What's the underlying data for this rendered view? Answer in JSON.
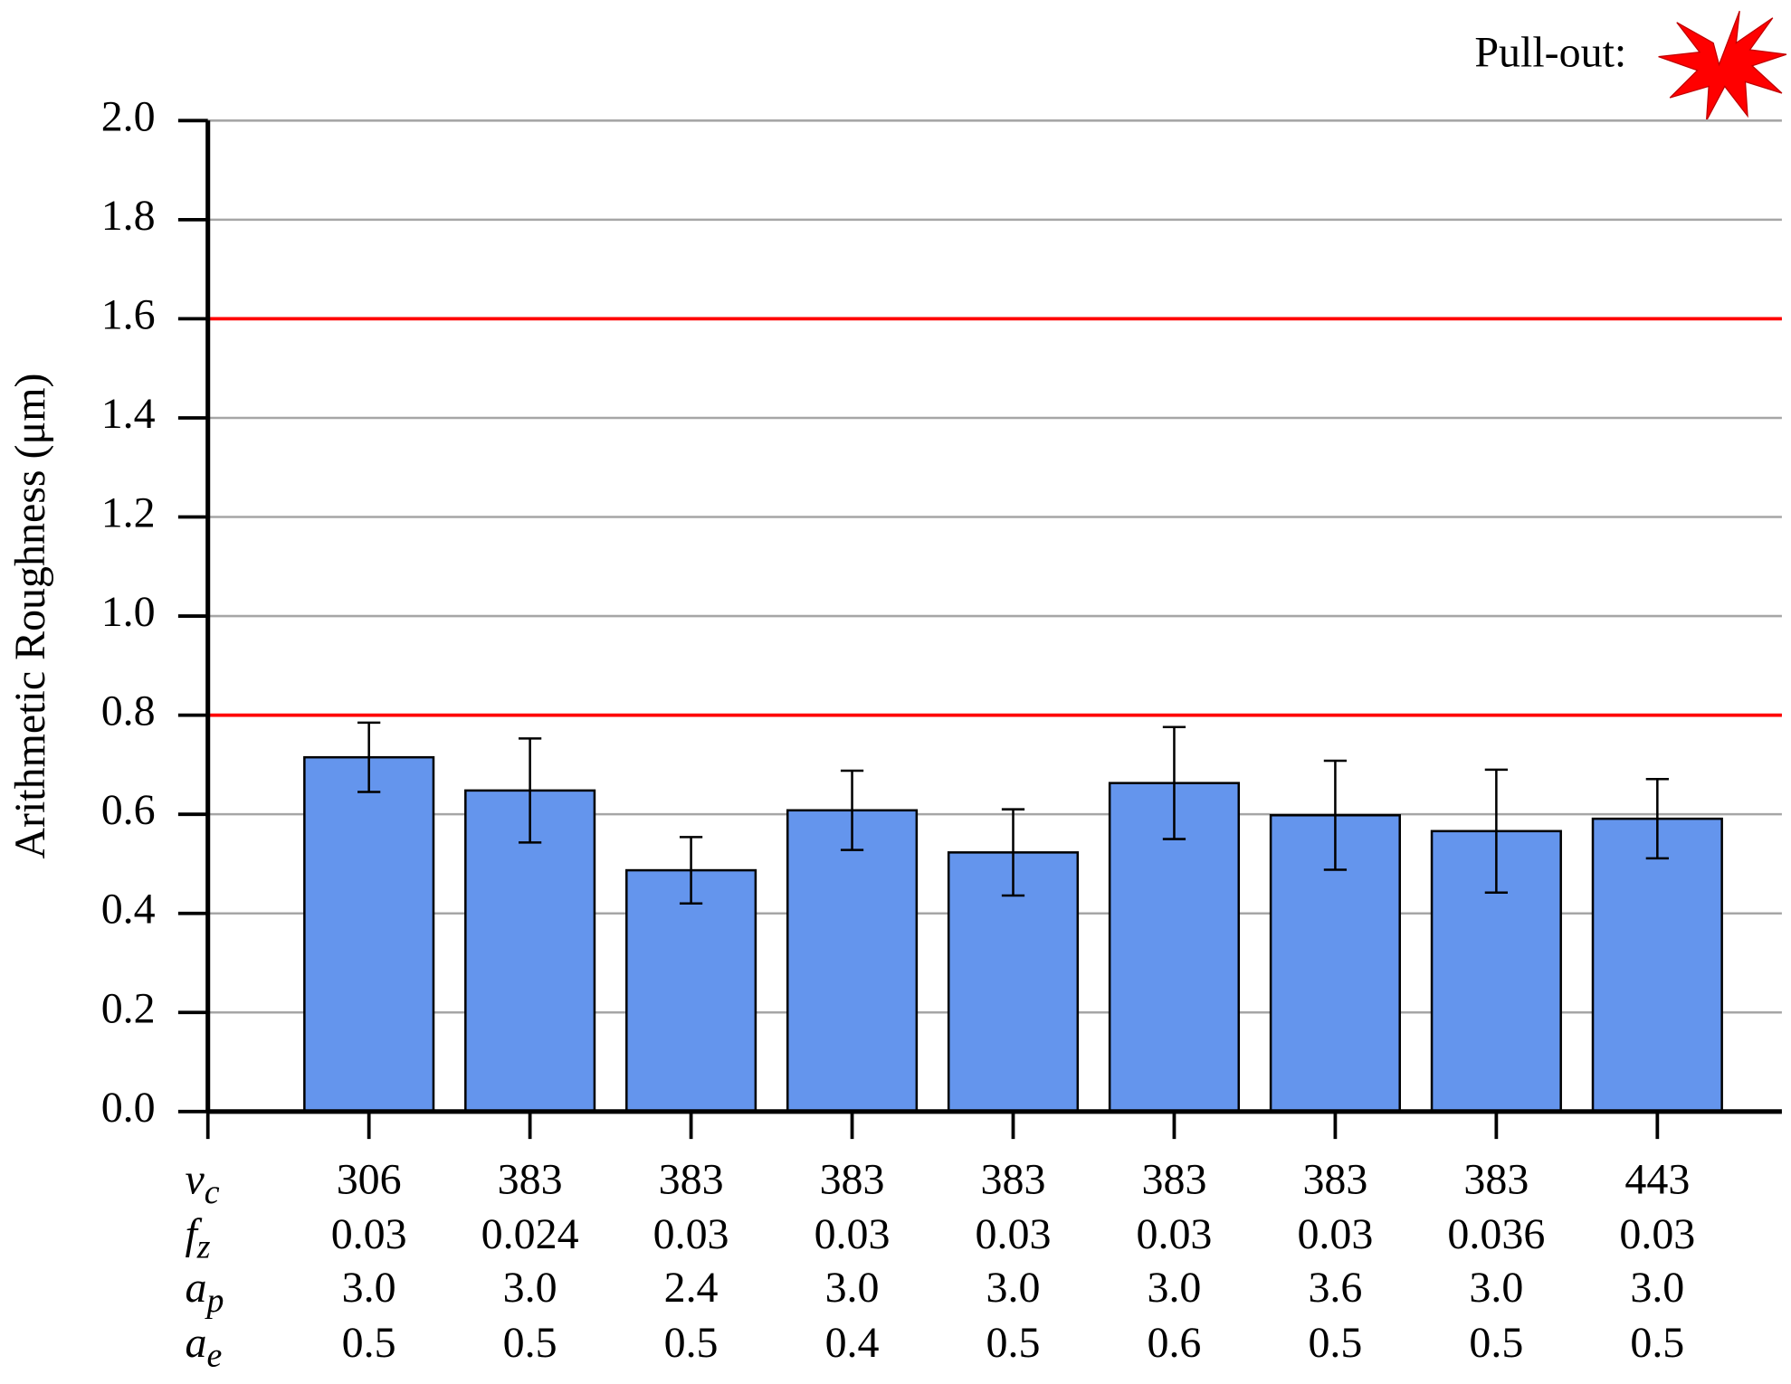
{
  "chart_data": {
    "type": "bar",
    "y_label": "Arithmetic Roughness (μm)",
    "legend_label": "Pull-out:",
    "values": [
      0.715,
      0.648,
      0.487,
      0.608,
      0.523,
      0.663,
      0.598,
      0.566,
      0.591
    ],
    "errors": [
      0.07,
      0.105,
      0.067,
      0.08,
      0.087,
      0.113,
      0.11,
      0.124,
      0.08
    ],
    "color": "#6495ed",
    "ylim": [
      0,
      2
    ],
    "yticks": [
      {
        "value": 0,
        "label": "0.0"
      },
      0.2,
      0.4,
      0.6,
      0.8,
      {
        "value": 1,
        "label": "1.0"
      },
      1.2,
      1.4,
      1.6,
      1.8,
      {
        "value": 2,
        "label": "2.0"
      }
    ],
    "grid": true,
    "reference_lines": [
      0.8,
      1.6
    ],
    "reference_color": "#ff0000",
    "parameter_rows": [
      {
        "symbol": "v",
        "subscript": "c",
        "values": [
          "306",
          "383",
          "383",
          "383",
          "383",
          "383",
          "383",
          "383",
          "443"
        ]
      },
      {
        "symbol": "f",
        "subscript": "z",
        "values": [
          "0.03",
          "0.024",
          "0.03",
          "0.03",
          "0.03",
          "0.03",
          "0.03",
          "0.036",
          "0.03"
        ]
      },
      {
        "symbol": "a",
        "subscript": "p",
        "values": [
          "3.0",
          "3.0",
          "2.4",
          "3.0",
          "3.0",
          "3.0",
          "3.6",
          "3.0",
          "3.0"
        ]
      },
      {
        "symbol": "a",
        "subscript": "e",
        "values": [
          "0.5",
          "0.5",
          "0.5",
          "0.4",
          "0.5",
          "0.6",
          "0.5",
          "0.5",
          "0.5"
        ]
      }
    ]
  }
}
